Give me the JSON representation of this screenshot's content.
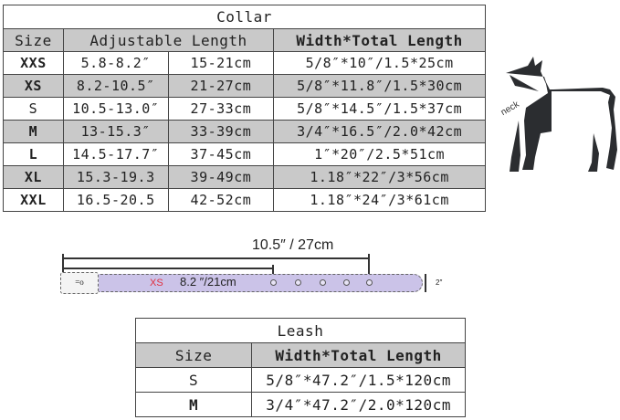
{
  "collar": {
    "title": "Collar",
    "headers": [
      "Size",
      "Adjustable Length",
      "Width*Total Length"
    ],
    "rows": [
      {
        "size": "XXS",
        "inches": "5.8-8.2″",
        "cm": "15-21cm",
        "width_length": "5/8″*10″/1.5*25cm"
      },
      {
        "size": "XS",
        "inches": "8.2-10.5″",
        "cm": "21-27cm",
        "width_length": "5/8″*11.8″/1.5*30cm"
      },
      {
        "size": "S",
        "inches": "10.5-13.0″",
        "cm": "27-33cm",
        "width_length": "5/8″*14.5″/1.5*37cm"
      },
      {
        "size": "M",
        "inches": "13-15.3″",
        "cm": "33-39cm",
        "width_length": "3/4″*16.5″/2.0*42cm"
      },
      {
        "size": "L",
        "inches": "14.5-17.7″",
        "cm": "37-45cm",
        "width_length": "1″*20″/2.5*51cm"
      },
      {
        "size": "XL",
        "inches": "15.3-19.3",
        "cm": "39-49cm",
        "width_length": "1.18″*22″/3*56cm"
      },
      {
        "size": "XXL",
        "inches": "16.5-20.5",
        "cm": "42-52cm",
        "width_length": "1.18″*24″/3*61cm"
      }
    ]
  },
  "diagram": {
    "neck_label": "neck",
    "max_length": "10.5″ / 27cm",
    "size_label": "XS",
    "min_length": "8.2 ″/21cm",
    "width_label": "2″",
    "strap_color": "#cbc3e8",
    "size_color": "#e03040"
  },
  "leash": {
    "title": "Leash",
    "headers": [
      "Size",
      "Width*Total Length"
    ],
    "rows": [
      {
        "size": "S",
        "width_length": "5/8″*47.2″/1.5*120cm"
      },
      {
        "size": "M",
        "width_length": "3/4″*47.2″/2.0*120cm"
      }
    ]
  }
}
